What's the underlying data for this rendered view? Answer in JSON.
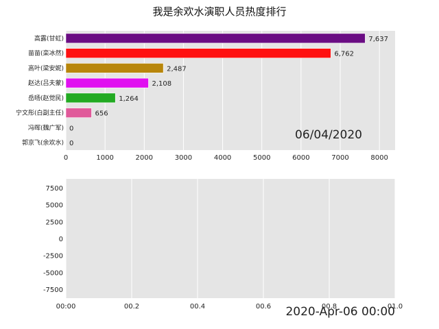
{
  "title": "我是余欢水演职人员热度排行",
  "colors": {
    "panel_bg": "#e5e5e5",
    "grid": "#ffffff"
  },
  "chart_data": [
    {
      "type": "bar",
      "orientation": "horizontal",
      "categories": [
        "高露(甘虹)",
        "苗苗(栾冰然)",
        "高叶(梁安妮)",
        "赵达(吕夫蒙)",
        "岳旸(赵觉民)",
        "宁文彤(白副主任)",
        "冯晖(魏广军)",
        "郭京飞(余欢水)"
      ],
      "values": [
        7637,
        6762,
        2487,
        2108,
        1264,
        656,
        0,
        0
      ],
      "value_labels": [
        "7,637",
        "6,762",
        "2,487",
        "2,108",
        "1,264",
        "656",
        "0",
        "0"
      ],
      "colors": [
        "#6a0d83",
        "#ff1111",
        "#b8860b",
        "#e010f0",
        "#22aa22",
        "#e05a9a",
        "#888888",
        "#888888"
      ],
      "xlim": [
        0,
        8400
      ],
      "xticks": [
        0,
        1000,
        2000,
        3000,
        4000,
        5000,
        6000,
        7000,
        8000
      ],
      "grid": true,
      "annotation": "06/04/2020"
    },
    {
      "type": "line",
      "series": [],
      "ylim": [
        -8800,
        8800
      ],
      "yticks": [
        7500,
        5000,
        2500,
        0,
        -2500,
        -5000,
        -7500
      ],
      "ytick_labels": [
        "7500",
        "5000",
        "2500",
        "0",
        "-2500",
        "-5000",
        "-7500"
      ],
      "xlim": [
        0,
        1
      ],
      "xticks": [
        0,
        0.2,
        0.4,
        0.6,
        0.8,
        1.0
      ],
      "xtick_labels": [
        "00:00",
        "00.2",
        "00.4",
        "00.6",
        "00.8",
        "01.0"
      ],
      "grid": true,
      "annotation": "2020-Apr-06 00:00"
    }
  ]
}
